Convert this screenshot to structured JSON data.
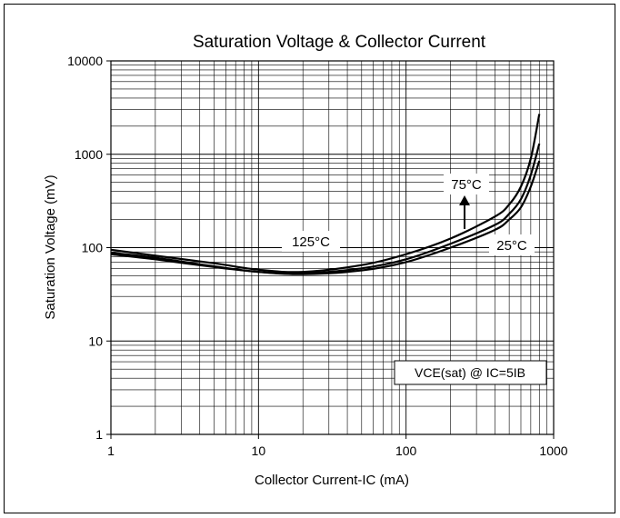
{
  "chart_data": {
    "type": "line",
    "title": "Saturation Voltage & Collector Current",
    "xlabel": "Collector Current-IC (mA)",
    "ylabel": "Saturation Voltage (mV)",
    "x_scale": "log",
    "y_scale": "log",
    "xlim": [
      1,
      1000
    ],
    "ylim": [
      1,
      10000
    ],
    "x_ticks": [
      "1",
      "10",
      "100",
      "1000"
    ],
    "y_ticks": [
      "1",
      "10",
      "100",
      "1000",
      "10000"
    ],
    "grid": true,
    "series": [
      {
        "name": "125°C",
        "x": [
          1,
          2,
          5,
          10,
          20,
          50,
          100,
          200,
          400,
          500,
          600,
          700,
          800
        ],
        "y": [
          95,
          82,
          68,
          58,
          55,
          65,
          85,
          125,
          215,
          290,
          450,
          900,
          2700
        ]
      },
      {
        "name": "75°C",
        "x": [
          1,
          2,
          5,
          10,
          20,
          50,
          100,
          200,
          400,
          500,
          600,
          700,
          800
        ],
        "y": [
          88,
          78,
          63,
          55,
          53,
          60,
          75,
          110,
          175,
          230,
          330,
          600,
          1300
        ]
      },
      {
        "name": "25°C",
        "x": [
          1,
          2,
          5,
          10,
          20,
          50,
          100,
          200,
          400,
          500,
          600,
          700,
          800
        ],
        "y": [
          85,
          75,
          62,
          55,
          52,
          57,
          70,
          100,
          155,
          200,
          270,
          450,
          850
        ]
      }
    ],
    "annotations": {
      "label_125": "125°C",
      "label_75": "75°C",
      "label_25": "25°C",
      "condition": "VCE(sat) @ IC=5IB"
    }
  }
}
